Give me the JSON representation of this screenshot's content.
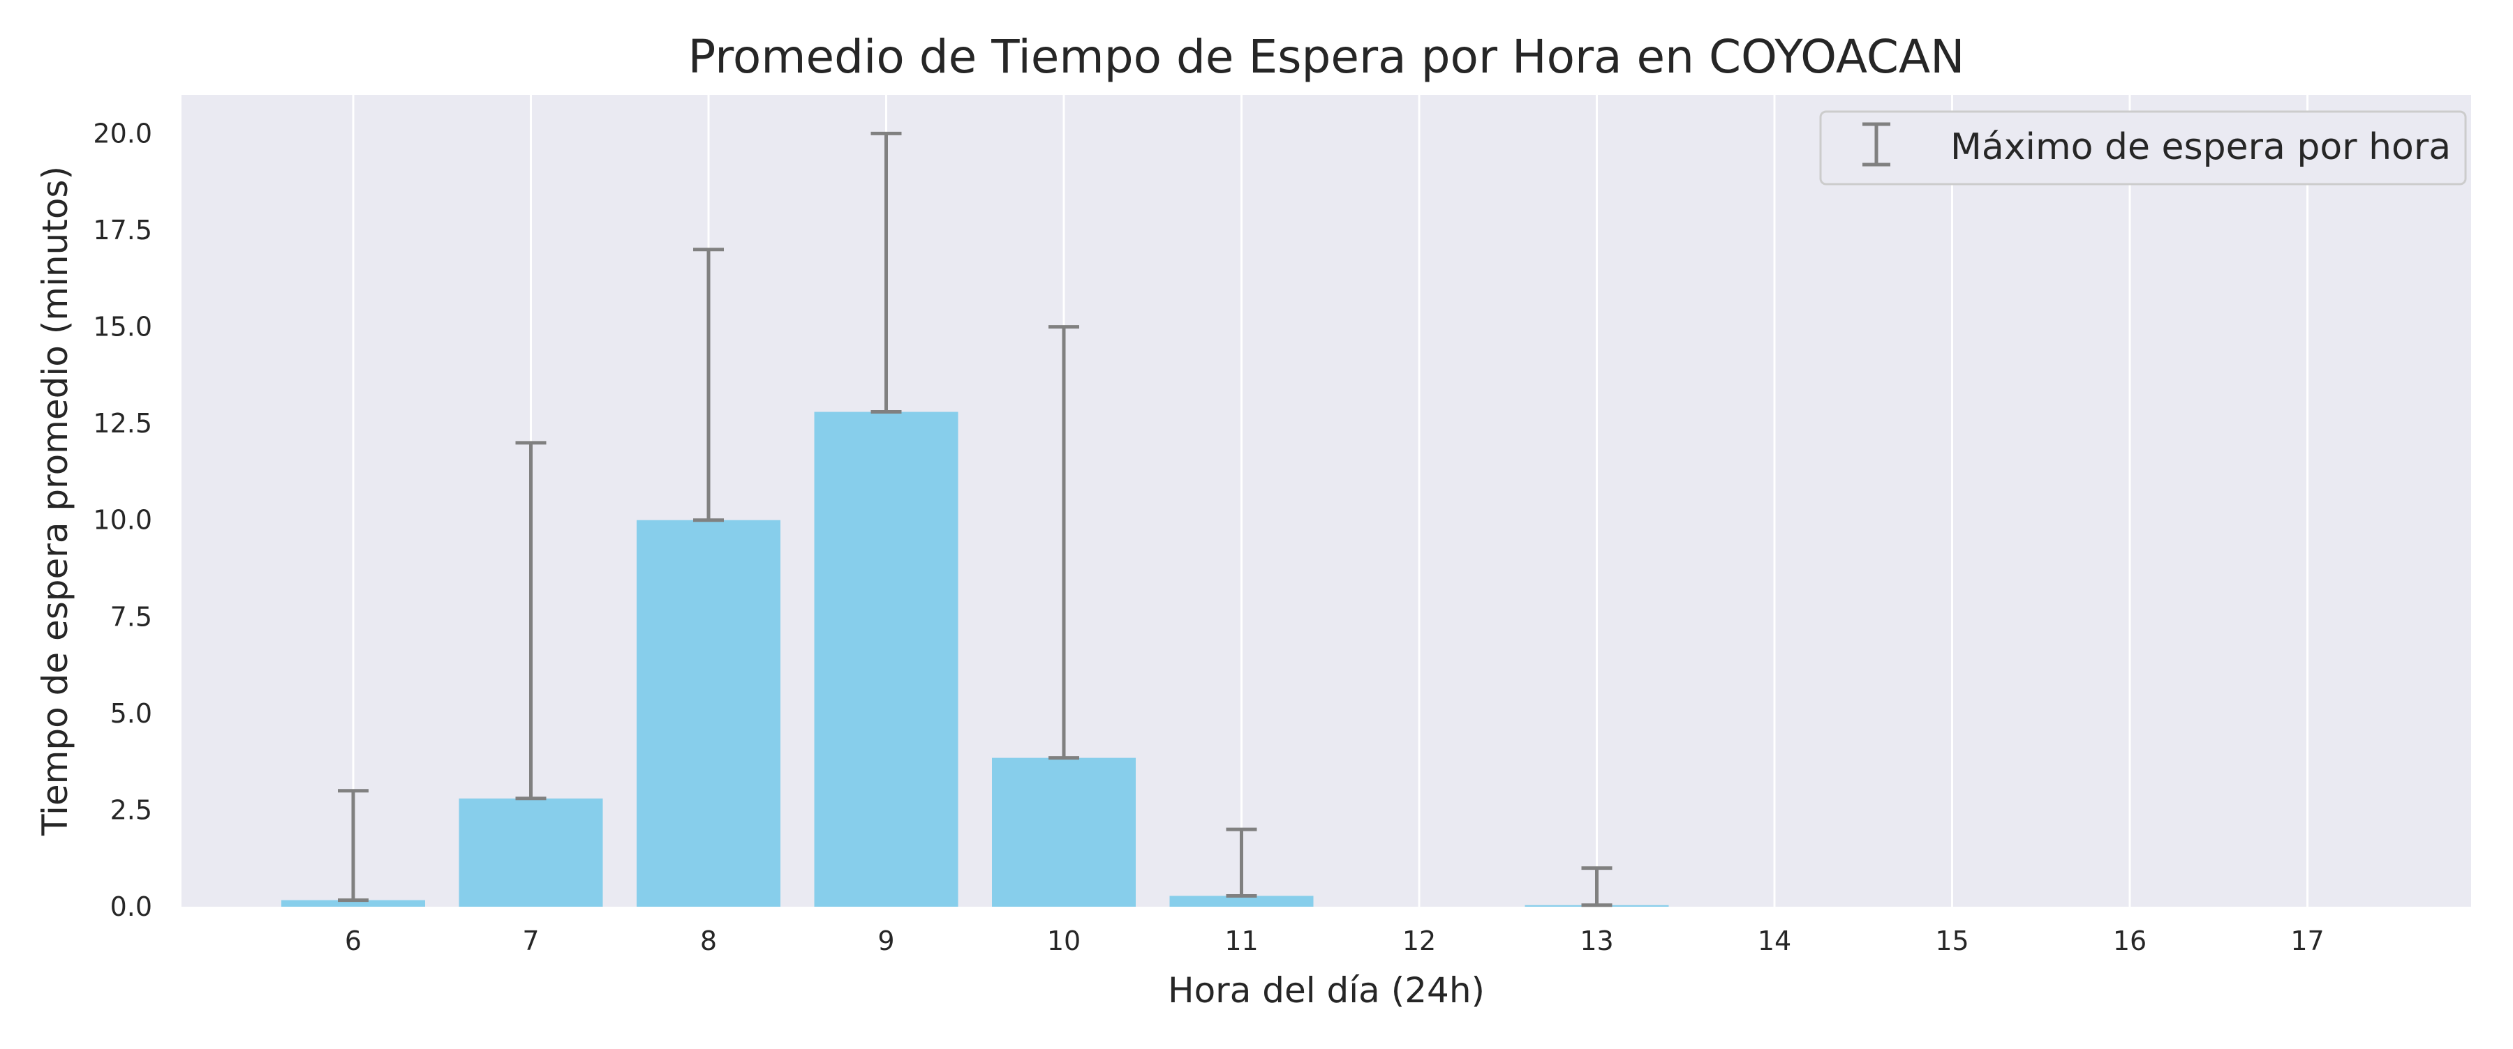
{
  "chart_data": {
    "type": "bar",
    "title": "Promedio de Tiempo de Espera por Hora en COYOACAN",
    "xlabel": "Hora del día (24h)",
    "ylabel": "Tiempo de espera promedio (minutos)",
    "categories": [
      "6",
      "7",
      "8",
      "9",
      "10",
      "11",
      "12",
      "13",
      "14",
      "15",
      "16",
      "17"
    ],
    "series": [
      {
        "values": [
          0.17,
          2.8,
          10.0,
          12.8,
          3.85,
          0.28,
          0.0,
          0.04,
          0.0,
          0.0,
          0.0,
          0.0
        ]
      }
    ],
    "error_max": [
      3.0,
      12.0,
      17.0,
      20.0,
      15.0,
      2.0,
      null,
      1.0,
      null,
      null,
      null,
      null
    ],
    "legend": {
      "entries": [
        "Máximo de espera por hora"
      ],
      "position": "top-right"
    },
    "yticks": [
      "0.0",
      "2.5",
      "5.0",
      "7.5",
      "10.0",
      "12.5",
      "15.0",
      "17.5",
      "20.0"
    ],
    "ylim": [
      0,
      21
    ],
    "grid": "x-only",
    "colors": {
      "bar": "#87ceeb",
      "error": "#808080",
      "plot_bg": "#eaeaf2",
      "grid": "#ffffff"
    }
  }
}
